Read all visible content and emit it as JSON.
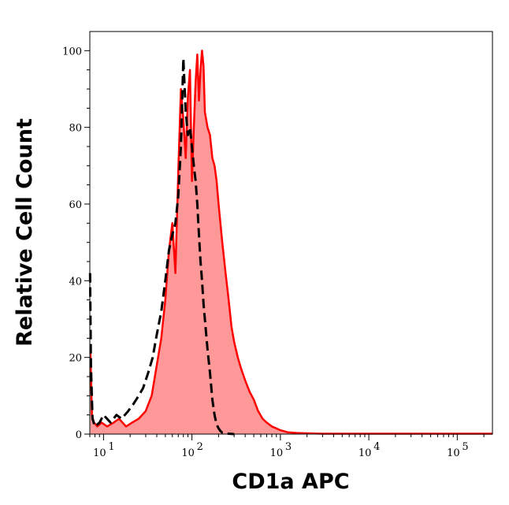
{
  "chart_data": {
    "type": "area",
    "title": "",
    "xlabel": "CD1a APC",
    "ylabel": "Relative Cell Count",
    "x_scale": "log",
    "xlim": [
      7,
      250000
    ],
    "ylim": [
      0,
      105
    ],
    "y_ticks": [
      {
        "value": 0,
        "label": "0"
      },
      {
        "value": 20,
        "label": "20"
      },
      {
        "value": 40,
        "label": "40"
      },
      {
        "value": 60,
        "label": "60"
      },
      {
        "value": 80,
        "label": "80"
      },
      {
        "value": 100,
        "label": "100"
      }
    ],
    "x_ticks": [
      {
        "value": 10,
        "label": "10",
        "exp": "1"
      },
      {
        "value": 100,
        "label": "10",
        "exp": "2"
      },
      {
        "value": 1000,
        "label": "10",
        "exp": "3"
      },
      {
        "value": 10000,
        "label": "10",
        "exp": "4"
      },
      {
        "value": 100000,
        "label": "10",
        "exp": "5"
      }
    ],
    "grid": false,
    "legend": "none",
    "series": [
      {
        "style": "filled",
        "color": "#ff0000",
        "fill": "#ff9999",
        "x": [
          7.1,
          7.4,
          7.8,
          8.5,
          9.5,
          11,
          13,
          15,
          18,
          21,
          25,
          30,
          35,
          40,
          45,
          50,
          55,
          60,
          65,
          70,
          75,
          80,
          85,
          90,
          95,
          100,
          105,
          110,
          115,
          120,
          125,
          130,
          135,
          140,
          150,
          160,
          170,
          180,
          190,
          200,
          220,
          240,
          260,
          280,
          300,
          330,
          360,
          400,
          450,
          500,
          560,
          630,
          700,
          800,
          900,
          1000,
          1200,
          1500,
          2000,
          3000,
          5000,
          10000,
          30000,
          100000,
          250000
        ],
        "y": [
          22,
          5,
          3,
          2,
          3,
          2,
          3,
          4,
          2,
          3,
          4,
          6,
          10,
          18,
          25,
          35,
          48,
          55,
          42,
          68,
          90,
          82,
          72,
          88,
          95,
          66,
          80,
          92,
          99,
          87,
          95,
          100,
          96,
          84,
          80,
          78,
          72,
          70,
          66,
          60,
          50,
          42,
          35,
          28,
          24,
          20,
          17,
          14,
          11,
          9,
          6,
          4,
          3,
          2,
          1.5,
          1,
          0.5,
          0.3,
          0.2,
          0.1,
          0.1,
          0.1,
          0.1,
          0.1,
          0.1
        ]
      },
      {
        "style": "dashed",
        "color": "#000000",
        "x": [
          7.05,
          7.2,
          7.5,
          8,
          9,
          10,
          12,
          14,
          16,
          19,
          22,
          25,
          28,
          32,
          36,
          40,
          45,
          50,
          55,
          60,
          65,
          70,
          75,
          80,
          85,
          90,
          95,
          100,
          105,
          110,
          115,
          120,
          125,
          130,
          135,
          140,
          150,
          160,
          170,
          180,
          190,
          200,
          210,
          220,
          240,
          260,
          300
        ],
        "y": [
          42,
          18,
          4,
          2,
          3,
          5,
          3,
          5,
          4,
          6,
          8,
          10,
          12,
          16,
          20,
          26,
          32,
          40,
          48,
          52,
          55,
          62,
          75,
          98,
          84,
          78,
          80,
          75,
          70,
          66,
          60,
          52,
          45,
          40,
          34,
          30,
          22,
          16,
          9,
          5,
          2.5,
          1.5,
          0.8,
          0.4,
          0.2,
          0.1,
          0
        ]
      }
    ]
  }
}
